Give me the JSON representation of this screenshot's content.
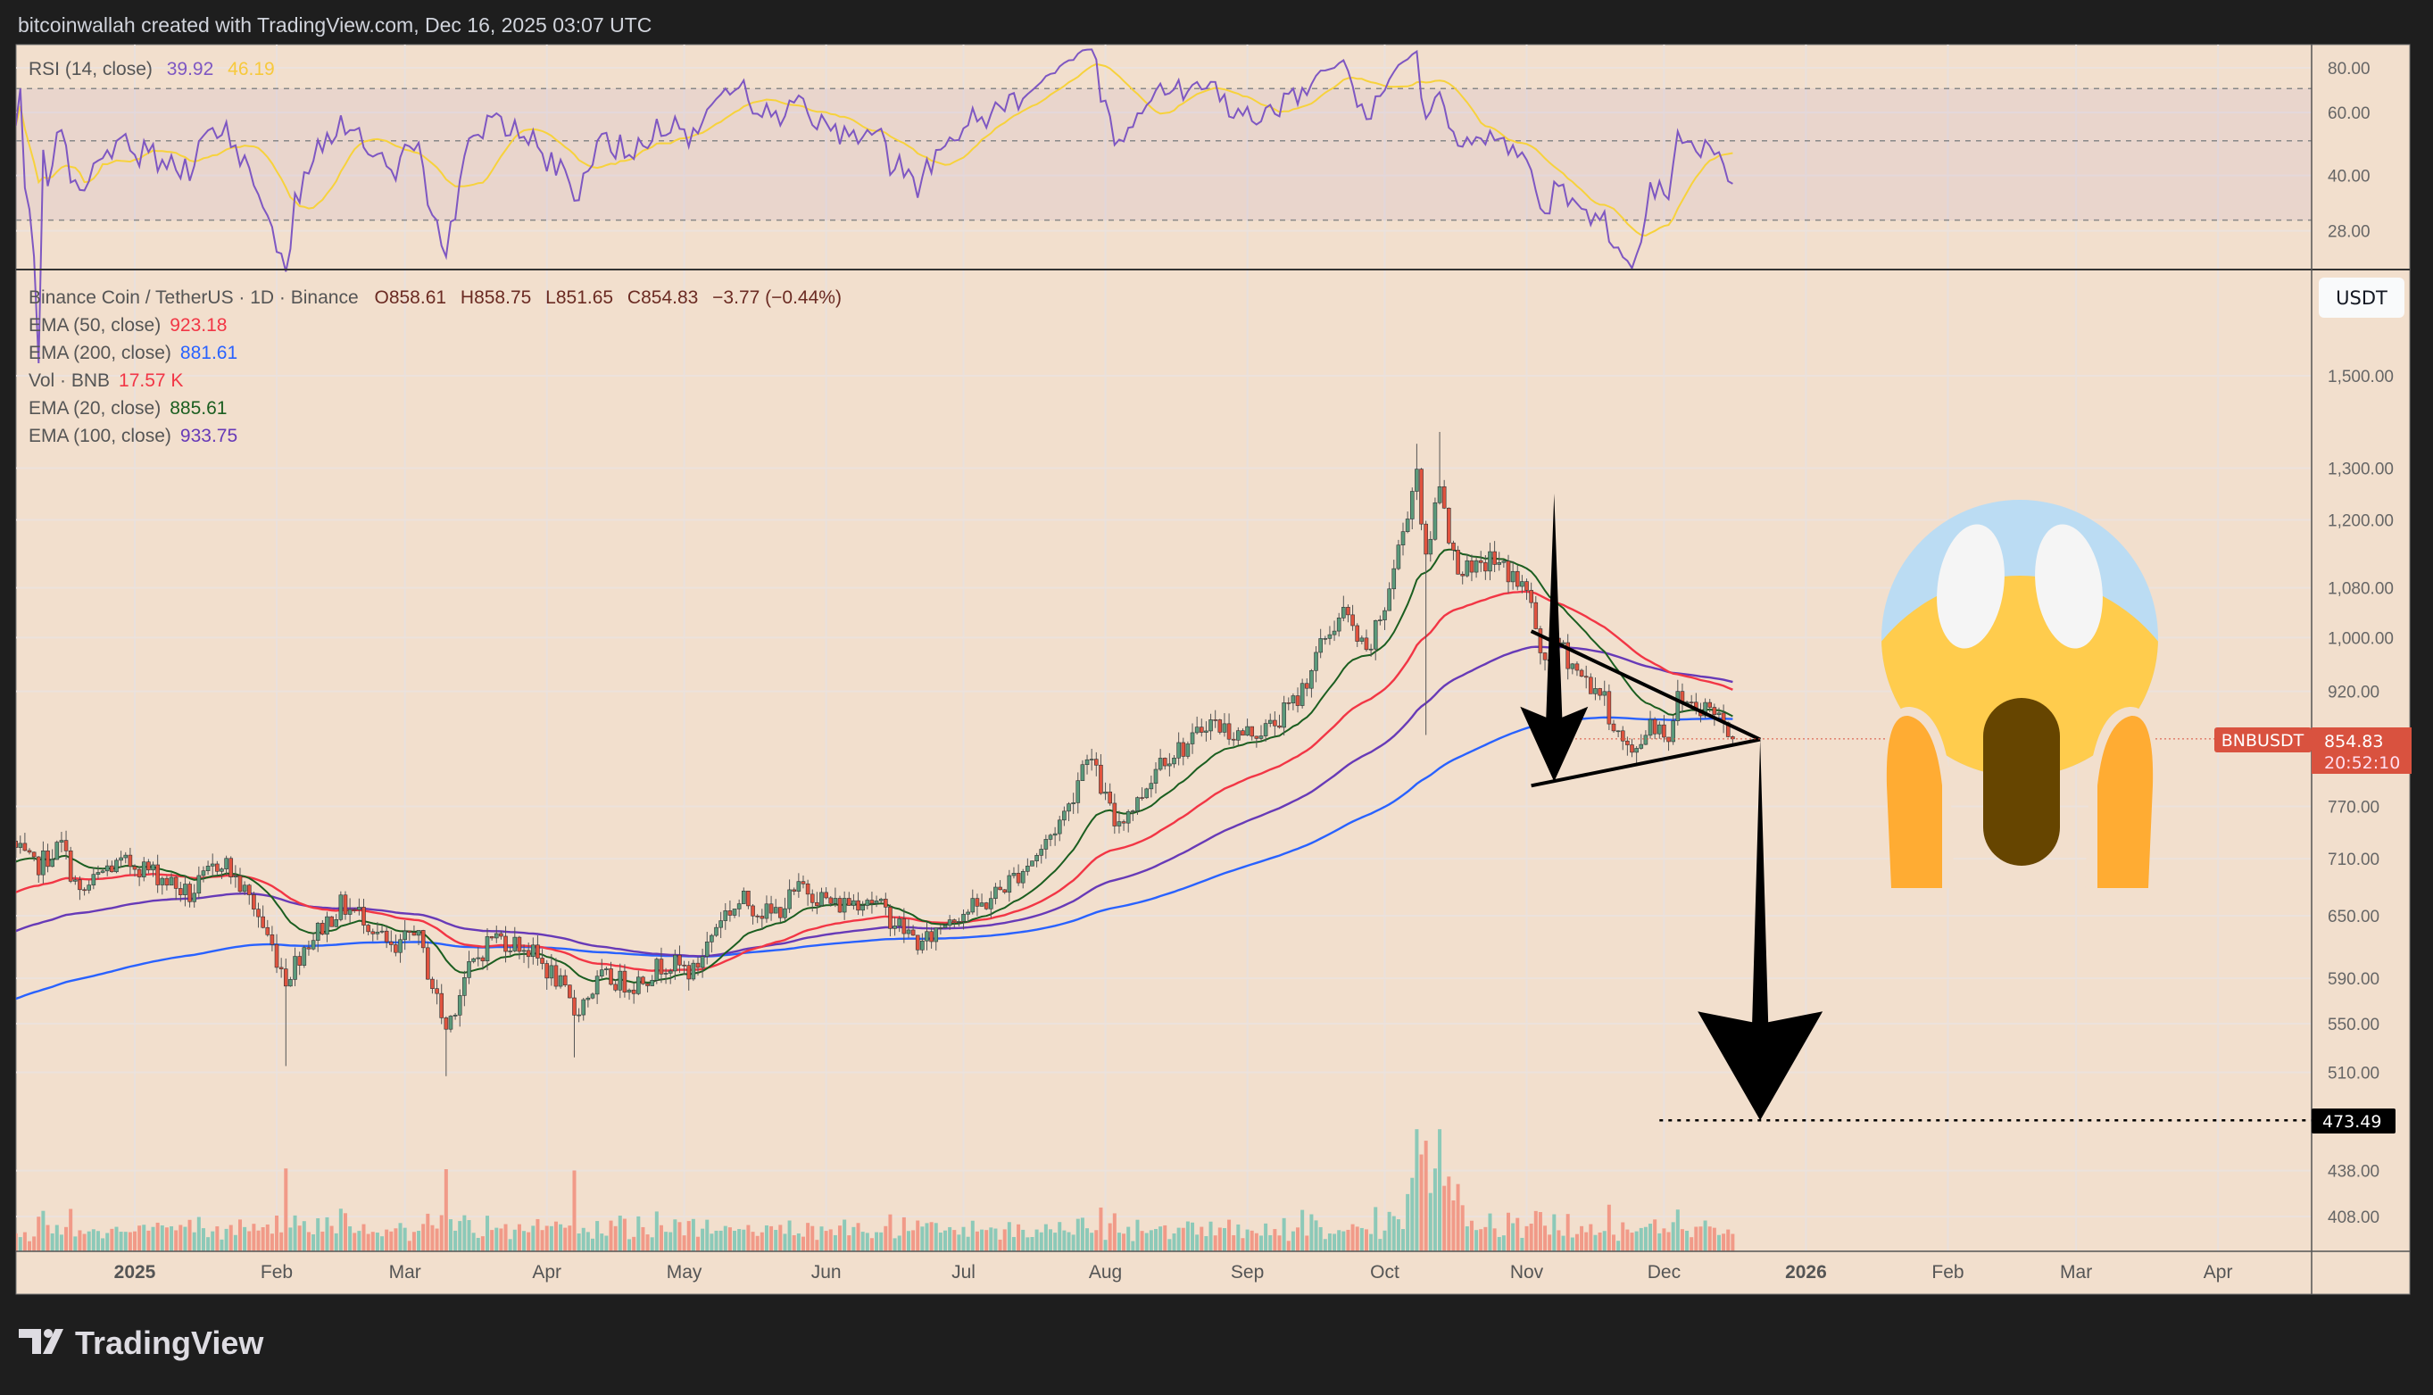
{
  "header": {
    "attribution": "bitcoinwallah created with TradingView.com, Dec 16, 2025 03:07 UTC"
  },
  "footer": {
    "brand": "TradingView"
  },
  "colors": {
    "background": "#f2dfcd",
    "frame": "#1e1e1e",
    "up": "#5b9a7b",
    "down": "#e0533f",
    "vol_up": "#8cc9b8",
    "vol_down": "#f19a88",
    "rsi": "#7e57c2",
    "rsi_ma": "#f7d23c",
    "ema20": "#1b5e20",
    "ema50": "#f23645",
    "ema100": "#673ab7",
    "ema200": "#2962ff",
    "price_tag": "#d9523f",
    "emoji_blue": "#bbdcf3",
    "emoji_yellow": "#ffcc4d",
    "emoji_hands": "#ffac33",
    "emoji_mouth": "#664500"
  },
  "rsi_legend": {
    "label": "RSI (14, close)",
    "value": "39.92",
    "ma_value": "46.19"
  },
  "legend": {
    "symbol": "Binance Coin / TetherUS · 1D · Binance",
    "open": "O858.61",
    "high": "H858.75",
    "low": "L851.65",
    "close": "C854.83",
    "change": "−3.77 (−0.44%)",
    "indicators": [
      {
        "label": "EMA (50, close)",
        "value": "923.18",
        "key": "ema50"
      },
      {
        "label": "EMA (200, close)",
        "value": "881.61",
        "key": "ema200"
      },
      {
        "label": "Vol · BNB",
        "value": "17.57 K",
        "key": "vol"
      },
      {
        "label": "EMA (20, close)",
        "value": "885.61",
        "key": "ema20"
      },
      {
        "label": "EMA (100, close)",
        "value": "933.75",
        "key": "ema100"
      }
    ]
  },
  "currency_button": "USDT",
  "price_tag": {
    "symbol": "BNBUSDT",
    "price": "854.83",
    "countdown": "20:52:10"
  },
  "target_label": "473.49",
  "chart_data": {
    "type": "candlestick",
    "symbol": "BNBUSDT",
    "interval": "1D",
    "price_scale": "log",
    "price_ticks": [
      "1,500.00",
      "1,300.00",
      "1,200.00",
      "1,080.00",
      "1,000.00",
      "920.00",
      "770.00",
      "710.00",
      "650.00",
      "590.00",
      "550.00",
      "510.00",
      "438.00",
      "408.00"
    ],
    "price_tick_values": [
      1500,
      1300,
      1200,
      1080,
      1000,
      920,
      770,
      710,
      650,
      590,
      550,
      510,
      438,
      408
    ],
    "rsi_ticks": [
      "80.00",
      "60.00",
      "40.00",
      "28.00"
    ],
    "rsi_tick_values": [
      80,
      60,
      40,
      28
    ],
    "rsi_bands": [
      70,
      50,
      30
    ],
    "time_ticks": [
      {
        "label": "2025",
        "date": "2025-01-01",
        "bold": true
      },
      {
        "label": "Feb",
        "date": "2025-02-01"
      },
      {
        "label": "Mar",
        "date": "2025-03-01"
      },
      {
        "label": "Apr",
        "date": "2025-04-01"
      },
      {
        "label": "May",
        "date": "2025-05-01"
      },
      {
        "label": "Jun",
        "date": "2025-06-01"
      },
      {
        "label": "Jul",
        "date": "2025-07-01"
      },
      {
        "label": "Aug",
        "date": "2025-08-01"
      },
      {
        "label": "Sep",
        "date": "2025-09-01"
      },
      {
        "label": "Oct",
        "date": "2025-10-01"
      },
      {
        "label": "Nov",
        "date": "2025-11-01"
      },
      {
        "label": "Dec",
        "date": "2025-12-01"
      },
      {
        "label": "2026",
        "date": "2026-01-01",
        "bold": true
      },
      {
        "label": "Feb",
        "date": "2026-02-01"
      },
      {
        "label": "Mar",
        "date": "2026-03-01"
      },
      {
        "label": "Apr",
        "date": "2026-04-01"
      }
    ],
    "approx_closes": [
      [
        "2024-12-06",
        720
      ],
      [
        "2024-12-10",
        700
      ],
      [
        "2024-12-16",
        725
      ],
      [
        "2024-12-20",
        670
      ],
      [
        "2024-12-26",
        700
      ],
      [
        "2025-01-01",
        705
      ],
      [
        "2025-01-07",
        690
      ],
      [
        "2025-01-13",
        670
      ],
      [
        "2025-01-20",
        710
      ],
      [
        "2025-01-27",
        660
      ],
      [
        "2025-02-02",
        600
      ],
      [
        "2025-02-03",
        590
      ],
      [
        "2025-02-07",
        620
      ],
      [
        "2025-02-15",
        660
      ],
      [
        "2025-02-20",
        650
      ],
      [
        "2025-02-27",
        610
      ],
      [
        "2025-03-03",
        640
      ],
      [
        "2025-03-10",
        545
      ],
      [
        "2025-03-14",
        590
      ],
      [
        "2025-03-20",
        630
      ],
      [
        "2025-03-27",
        620
      ],
      [
        "2025-04-03",
        590
      ],
      [
        "2025-04-07",
        560
      ],
      [
        "2025-04-13",
        590
      ],
      [
        "2025-04-20",
        585
      ],
      [
        "2025-04-27",
        605
      ],
      [
        "2025-05-03",
        595
      ],
      [
        "2025-05-09",
        650
      ],
      [
        "2025-05-14",
        665
      ],
      [
        "2025-05-20",
        650
      ],
      [
        "2025-05-27",
        680
      ],
      [
        "2025-06-03",
        660
      ],
      [
        "2025-06-10",
        670
      ],
      [
        "2025-06-17",
        640
      ],
      [
        "2025-06-22",
        620
      ],
      [
        "2025-06-28",
        650
      ],
      [
        "2025-07-05",
        660
      ],
      [
        "2025-07-12",
        690
      ],
      [
        "2025-07-18",
        720
      ],
      [
        "2025-07-24",
        770
      ],
      [
        "2025-07-28",
        840
      ],
      [
        "2025-08-03",
        750
      ],
      [
        "2025-08-08",
        775
      ],
      [
        "2025-08-13",
        830
      ],
      [
        "2025-08-20",
        850
      ],
      [
        "2025-08-23",
        880
      ],
      [
        "2025-08-30",
        860
      ],
      [
        "2025-09-06",
        870
      ],
      [
        "2025-09-12",
        910
      ],
      [
        "2025-09-18",
        1000
      ],
      [
        "2025-09-22",
        1040
      ],
      [
        "2025-09-27",
        970
      ],
      [
        "2025-10-01",
        1050
      ],
      [
        "2025-10-05",
        1180
      ],
      [
        "2025-10-08",
        1300
      ],
      [
        "2025-10-10",
        1120
      ],
      [
        "2025-10-13",
        1280
      ],
      [
        "2025-10-16",
        1130
      ],
      [
        "2025-10-20",
        1100
      ],
      [
        "2025-10-24",
        1130
      ],
      [
        "2025-10-29",
        1100
      ],
      [
        "2025-11-02",
        1060
      ],
      [
        "2025-11-04",
        960
      ],
      [
        "2025-11-08",
        990
      ],
      [
        "2025-11-13",
        940
      ],
      [
        "2025-11-17",
        920
      ],
      [
        "2025-11-21",
        860
      ],
      [
        "2025-11-24",
        830
      ],
      [
        "2025-11-28",
        880
      ],
      [
        "2025-12-02",
        860
      ],
      [
        "2025-12-04",
        910
      ],
      [
        "2025-12-09",
        900
      ],
      [
        "2025-12-13",
        890
      ],
      [
        "2025-12-16",
        854.83
      ]
    ],
    "notable_wicks": [
      {
        "date": "2025-02-03",
        "low": 515
      },
      {
        "date": "2025-03-10",
        "low": 507
      },
      {
        "date": "2025-04-07",
        "low": 522
      },
      {
        "date": "2025-10-10",
        "low": 860
      },
      {
        "date": "2025-10-13",
        "high": 1375
      },
      {
        "date": "2025-10-08",
        "high": 1350
      }
    ],
    "ema_start": {
      "ema20": 705,
      "ema50": 672,
      "ema100": 633,
      "ema200": 570
    },
    "annotations": {
      "triangle_upper": [
        [
          "2025-11-02",
          1010
        ],
        [
          "2025-12-22",
          854
        ]
      ],
      "triangle_lower": [
        [
          "2025-11-02",
          795
        ],
        [
          "2025-12-22",
          854
        ]
      ],
      "arrow_1": {
        "date": "2025-11-07",
        "from": 1250,
        "to": 800
      },
      "arrow_2": {
        "date": "2025-12-22",
        "from": 854,
        "to": 473.49
      },
      "target_level": 473.49,
      "last_price": 854.83
    }
  }
}
